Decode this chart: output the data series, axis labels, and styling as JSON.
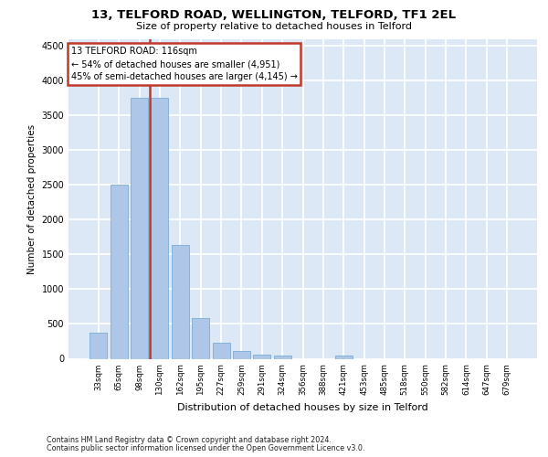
{
  "title1": "13, TELFORD ROAD, WELLINGTON, TELFORD, TF1 2EL",
  "title2": "Size of property relative to detached houses in Telford",
  "xlabel": "Distribution of detached houses by size in Telford",
  "ylabel": "Number of detached properties",
  "categories": [
    "33sqm",
    "65sqm",
    "98sqm",
    "130sqm",
    "162sqm",
    "195sqm",
    "227sqm",
    "259sqm",
    "291sqm",
    "324sqm",
    "356sqm",
    "388sqm",
    "421sqm",
    "453sqm",
    "485sqm",
    "518sqm",
    "550sqm",
    "582sqm",
    "614sqm",
    "647sqm",
    "679sqm"
  ],
  "values": [
    370,
    2500,
    3750,
    3750,
    1640,
    590,
    230,
    110,
    60,
    45,
    0,
    0,
    50,
    0,
    0,
    0,
    0,
    0,
    0,
    0,
    0
  ],
  "bar_color": "#aec6e8",
  "bar_edge_color": "#7aadd4",
  "vline_x": 2.5,
  "vline_color": "#c0392b",
  "annotation_line1": "13 TELFORD ROAD: 116sqm",
  "annotation_line2": "← 54% of detached houses are smaller (4,951)",
  "annotation_line3": "45% of semi-detached houses are larger (4,145) →",
  "annotation_box_edgecolor": "#c0392b",
  "background_color": "#dce8f5",
  "grid_color": "#ffffff",
  "ylim_max": 4600,
  "yticks": [
    0,
    500,
    1000,
    1500,
    2000,
    2500,
    3000,
    3500,
    4000,
    4500
  ],
  "footer1": "Contains HM Land Registry data © Crown copyright and database right 2024.",
  "footer2": "Contains public sector information licensed under the Open Government Licence v3.0."
}
